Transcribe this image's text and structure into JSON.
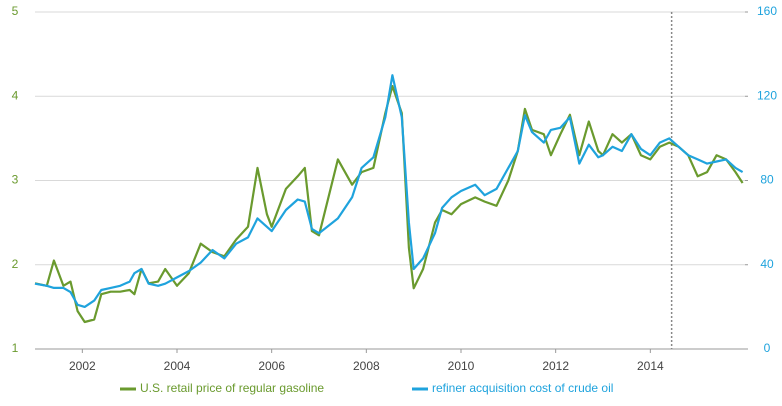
{
  "chart_data": {
    "type": "line",
    "x": [
      2001.0,
      2001.25,
      2001.4,
      2001.6,
      2001.75,
      2001.9,
      2002.05,
      2002.25,
      2002.4,
      2002.6,
      2002.8,
      2003.0,
      2003.1,
      2003.25,
      2003.4,
      2003.6,
      2003.75,
      2004.0,
      2004.25,
      2004.5,
      2004.75,
      2005.0,
      2005.25,
      2005.5,
      2005.7,
      2005.9,
      2006.0,
      2006.3,
      2006.55,
      2006.7,
      2006.85,
      2007.0,
      2007.4,
      2007.7,
      2007.9,
      2008.15,
      2008.4,
      2008.55,
      2008.75,
      2008.9,
      2009.0,
      2009.2,
      2009.45,
      2009.6,
      2009.8,
      2010.0,
      2010.3,
      2010.5,
      2010.75,
      2011.0,
      2011.2,
      2011.35,
      2011.5,
      2011.75,
      2011.9,
      2012.1,
      2012.3,
      2012.5,
      2012.7,
      2012.9,
      2013.0,
      2013.2,
      2013.4,
      2013.6,
      2013.8,
      2014.0,
      2014.2,
      2014.4,
      2014.6,
      2014.8,
      2015.0,
      2015.2,
      2015.4,
      2015.6,
      2015.8,
      2015.95
    ],
    "series": [
      {
        "name": "U.S. retail price of regular gasoline",
        "color": "#6a9a2e",
        "values": [
          1.78,
          1.75,
          2.05,
          1.75,
          1.8,
          1.45,
          1.32,
          1.35,
          1.65,
          1.68,
          1.68,
          1.7,
          1.65,
          1.95,
          1.78,
          1.8,
          1.95,
          1.75,
          1.9,
          2.25,
          2.15,
          2.1,
          2.3,
          2.45,
          3.15,
          2.6,
          2.45,
          2.9,
          3.05,
          3.15,
          2.4,
          2.35,
          3.25,
          2.95,
          3.1,
          3.15,
          3.8,
          4.12,
          3.8,
          2.2,
          1.72,
          1.95,
          2.5,
          2.65,
          2.6,
          2.72,
          2.8,
          2.75,
          2.7,
          3.0,
          3.35,
          3.85,
          3.6,
          3.55,
          3.3,
          3.55,
          3.78,
          3.3,
          3.7,
          3.35,
          3.3,
          3.55,
          3.45,
          3.55,
          3.3,
          3.25,
          3.4,
          3.45,
          3.4,
          3.3,
          3.05,
          3.1,
          3.3,
          3.25,
          3.1,
          2.97
        ]
      },
      {
        "name": "refiner acquisition cost of crude oil",
        "color": "#1fa3dd",
        "axis": "y2",
        "values": [
          31,
          30,
          29,
          29,
          27,
          21,
          20,
          23,
          28,
          29,
          30,
          32,
          36,
          38,
          31,
          30,
          31,
          34,
          37,
          41,
          47,
          43,
          50,
          53,
          62,
          58,
          56,
          66,
          71,
          70,
          57,
          55,
          62,
          72,
          86,
          91,
          110,
          130,
          110,
          60,
          38,
          43,
          55,
          67,
          72,
          75,
          78,
          73,
          76,
          86,
          94,
          111,
          103,
          98,
          104,
          105,
          110,
          88,
          97,
          91,
          92,
          96,
          94,
          102,
          95,
          92,
          98,
          100,
          96,
          92,
          90,
          88,
          89,
          90,
          86,
          84
        ]
      }
    ],
    "xlim": [
      2001,
      2016
    ],
    "xticks": [
      2002,
      2004,
      2006,
      2008,
      2010,
      2012,
      2014
    ],
    "ylim": [
      1,
      5
    ],
    "yticks": [
      1,
      2,
      3,
      4,
      5
    ],
    "y2lim": [
      0,
      160
    ],
    "y2ticks": [
      0,
      40,
      80,
      120,
      160
    ],
    "vertical_line": 2014.45,
    "grid": true,
    "legend": "bottom"
  }
}
